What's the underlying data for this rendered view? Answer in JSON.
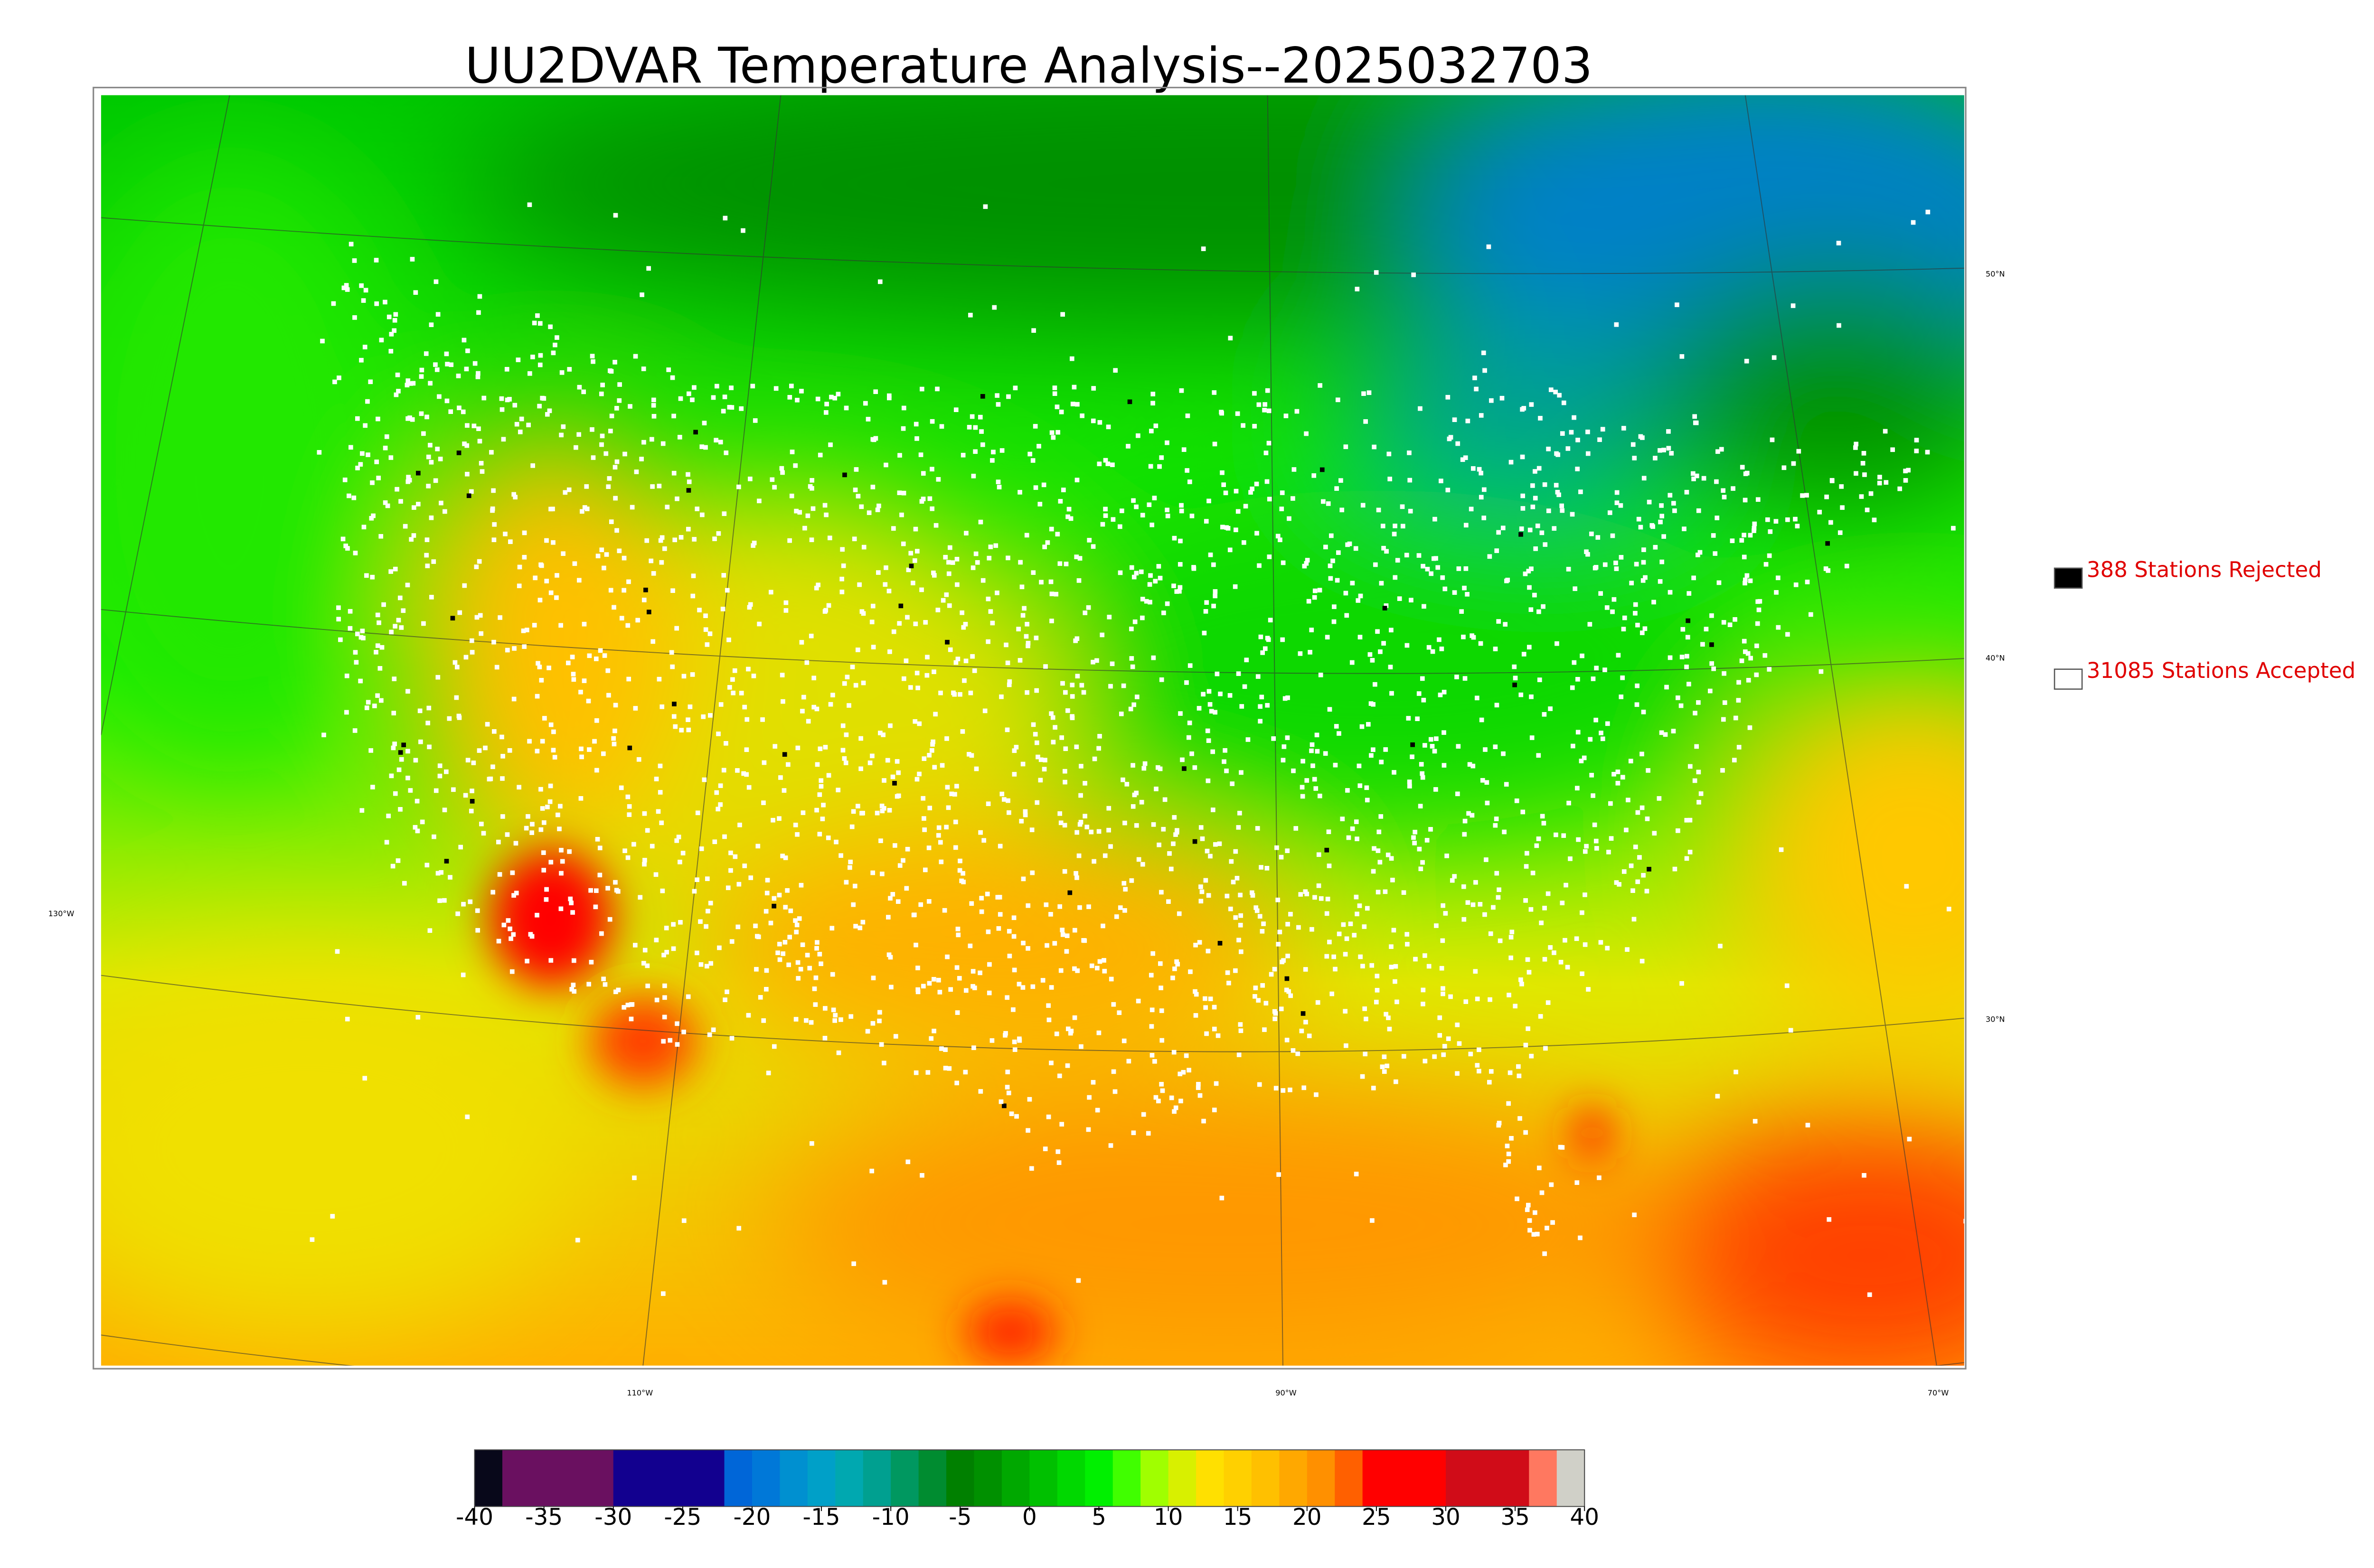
{
  "title": "UU2DVAR Temperature Analysis--2025032703",
  "legend": [
    {
      "label": "388 Stations Rejected",
      "color": "#000000"
    },
    {
      "label": "31085 Stations Accepted",
      "color": "#ffffff"
    }
  ],
  "latitude_labels": [
    "50°N",
    "40°N",
    "30°N"
  ],
  "longitude_labels": [
    "130°W",
    "110°W",
    "90°W",
    "70°W"
  ],
  "colorbar": {
    "range": [
      -40,
      40
    ],
    "ticks": [
      -40,
      -35,
      -30,
      -25,
      -20,
      -15,
      -10,
      -5,
      0,
      5,
      10,
      15,
      20,
      25,
      30,
      35,
      40
    ],
    "colors": [
      "#08081a",
      "#6a1060",
      "#6a1060",
      "#6a1060",
      "#6a1060",
      "#12008f",
      "#12008f",
      "#12008f",
      "#12008f",
      "#0066d8",
      "#0078d8",
      "#0090d0",
      "#00a0c8",
      "#00a8b0",
      "#00a090",
      "#009860",
      "#008c30",
      "#008000",
      "#009000",
      "#00a800",
      "#00c000",
      "#00d800",
      "#00f000",
      "#40ff00",
      "#a0ff00",
      "#d8f000",
      "#ffe000",
      "#ffd000",
      "#ffc000",
      "#ffa800",
      "#ff9000",
      "#ff6000",
      "#ff0000",
      "#ff0000",
      "#ff0000",
      "#d00c18",
      "#d00c18",
      "#d00c18",
      "#ff7860",
      "#d0d0c8"
    ]
  }
}
